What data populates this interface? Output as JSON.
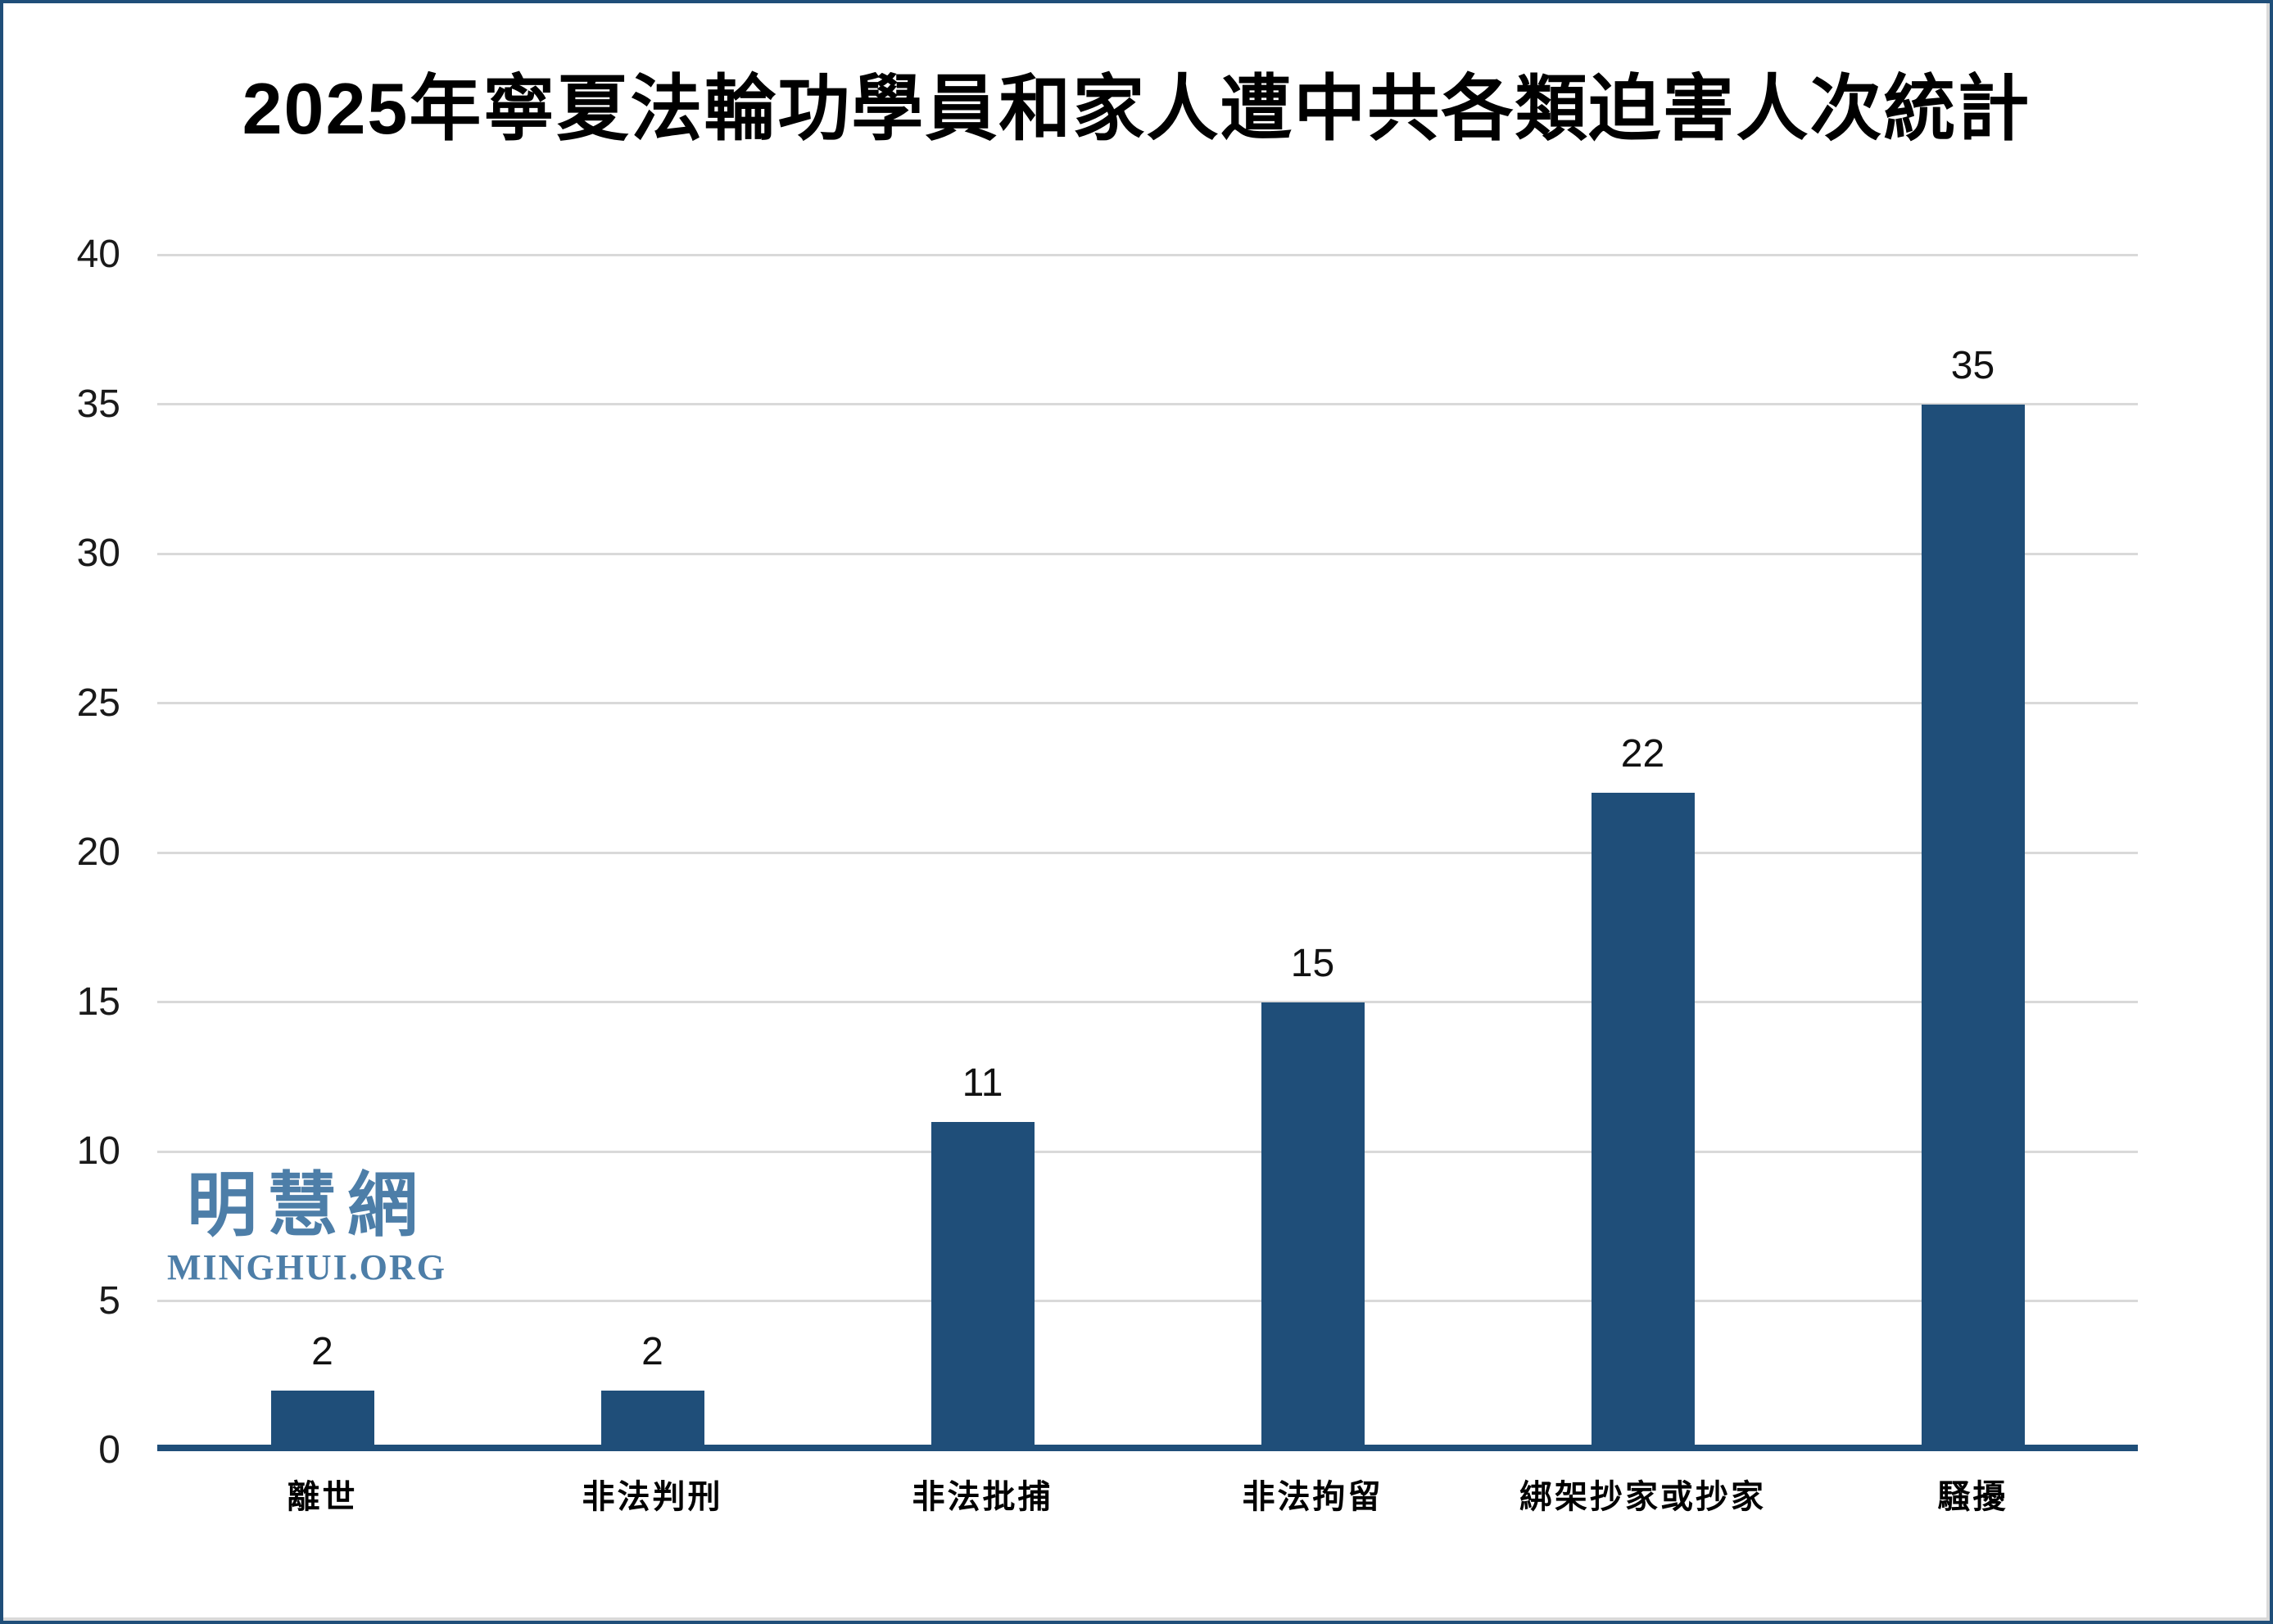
{
  "chart_data": {
    "type": "bar",
    "title": "2025年寧夏法輪功學員和家人遭中共各類迫害人次統計",
    "categories": [
      "離世",
      "非法判刑",
      "非法批捕",
      "非法拘留",
      "綁架抄家或抄家",
      "騷擾"
    ],
    "values": [
      2,
      2,
      11,
      15,
      22,
      35
    ],
    "data_labels": [
      2,
      2,
      11,
      15,
      22,
      35
    ],
    "xlabel": "",
    "ylabel": "",
    "ylim": [
      0,
      40
    ],
    "ytick_step": 5,
    "ytick_labels": [
      "0",
      "5",
      "10",
      "15",
      "20",
      "25",
      "30",
      "35",
      "40"
    ],
    "grid": true,
    "legend_position": "none",
    "bar_color": "#1F4E79",
    "axis_line_color": "#1F4E79",
    "gridline_color": "#D9D9D9",
    "label_color": "#111111"
  },
  "watermark": {
    "cjk": "明慧網",
    "latin": "MINGHUI.ORG",
    "color": "#4D7EA8"
  },
  "frame": {
    "border_color": "#1F4E79",
    "inner_edge_color": "#D9D9D9",
    "background": "#FFFFFF"
  }
}
